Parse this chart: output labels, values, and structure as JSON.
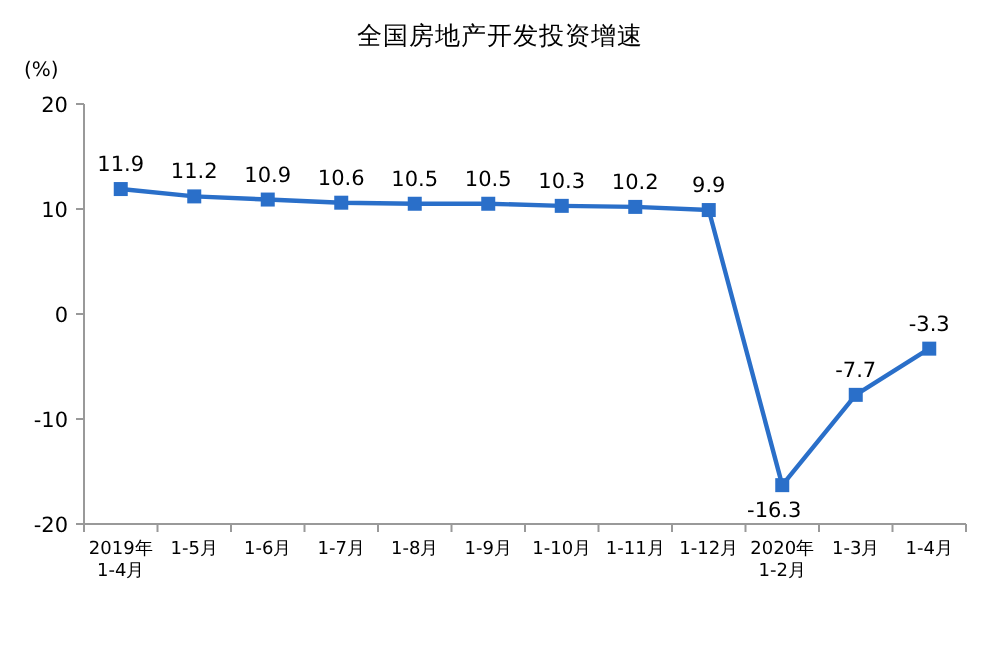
{
  "chart_data": {
    "type": "line",
    "title": "全国房地产开发投资增速",
    "ylabel": "(%)",
    "categories": [
      "2019年\n1-4月",
      "1-5月",
      "1-6月",
      "1-7月",
      "1-8月",
      "1-9月",
      "1-10月",
      "1-11月",
      "1-12月",
      "2020年\n1-2月",
      "1-3月",
      "1-4月"
    ],
    "values": [
      11.9,
      11.2,
      10.9,
      10.6,
      10.5,
      10.5,
      10.3,
      10.2,
      9.9,
      -16.3,
      -7.7,
      -3.3
    ],
    "color": "#2a6fc9",
    "ylim": [
      -20,
      20
    ],
    "yticks": [
      -20,
      -10,
      0,
      10,
      20
    ],
    "marker": "square",
    "data_labels": true
  }
}
